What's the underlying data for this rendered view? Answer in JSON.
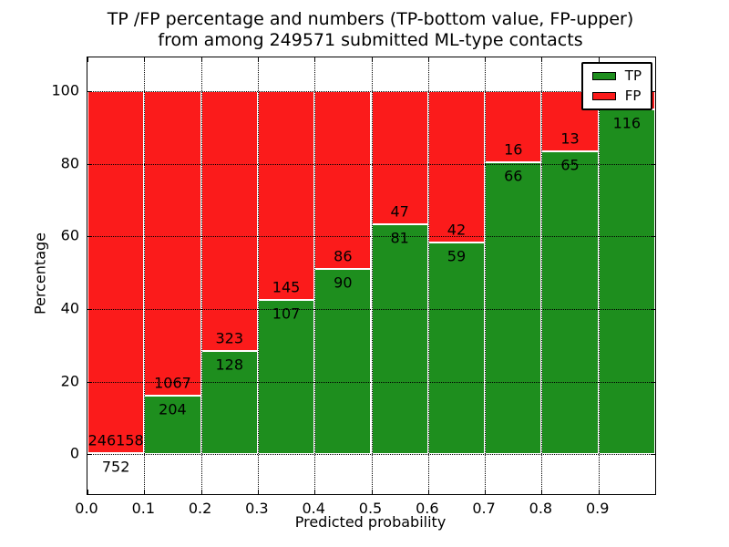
{
  "title": {
    "line1": "TP /FP percentage and numbers (TP-bottom value, FP-upper)",
    "line2": "from among 249571 submitted ML-type contacts"
  },
  "chart_data": {
    "type": "bar",
    "subtype": "stacked-percentage-histogram",
    "title": "TP /FP percentage and numbers (TP-bottom value, FP-upper) from among 249571 submitted ML-type contacts",
    "total_submitted": 249571,
    "xlabel": "Predicted probability",
    "ylabel": "Percentage",
    "xlim": [
      0.0,
      1.0
    ],
    "ylim": [
      -11,
      109.3
    ],
    "x_tick_values": [
      0.0,
      0.1,
      0.2,
      0.3,
      0.4,
      0.5,
      0.6,
      0.7,
      0.8,
      0.9
    ],
    "x_tick_labels": [
      "0.0",
      "0.1",
      "0.2",
      "0.3",
      "0.4",
      "0.5",
      "0.6",
      "0.7",
      "0.8",
      "0.9"
    ],
    "y_tick_values": [
      0,
      20,
      40,
      60,
      80,
      100
    ],
    "y_tick_labels": [
      "0",
      "20",
      "40",
      "60",
      "80",
      "100"
    ],
    "grid": "dotted, drawn above bars",
    "colors": {
      "tp": "#1e8e1e",
      "fp": "#fb1b1b",
      "edge": "#ffffff",
      "grid": "#000000"
    },
    "legend": {
      "position": "upper right",
      "entries": [
        {
          "label": "TP",
          "color_key": "tp"
        },
        {
          "label": "FP",
          "color_key": "fp"
        }
      ]
    },
    "bars": [
      {
        "bin": [
          0.0,
          0.1
        ],
        "tp_count": 752,
        "fp_count": 246158,
        "tp_label": "752",
        "fp_label": "246158",
        "tp_percent": 0.3
      },
      {
        "bin": [
          0.1,
          0.2
        ],
        "tp_count": 204,
        "fp_count": 1067,
        "tp_label": "204",
        "fp_label": "1067",
        "tp_percent": 16.05
      },
      {
        "bin": [
          0.2,
          0.3
        ],
        "tp_count": 128,
        "fp_count": 323,
        "tp_label": "128",
        "fp_label": "323",
        "tp_percent": 28.38
      },
      {
        "bin": [
          0.3,
          0.4
        ],
        "tp_count": 107,
        "fp_count": 145,
        "tp_label": "107",
        "fp_label": "145",
        "tp_percent": 42.46
      },
      {
        "bin": [
          0.4,
          0.5
        ],
        "tp_count": 90,
        "fp_count": 86,
        "tp_label": "90",
        "fp_label": "86",
        "tp_percent": 51.14
      },
      {
        "bin": [
          0.5,
          0.6
        ],
        "tp_count": 81,
        "fp_count": 47,
        "tp_label": "81",
        "fp_label": "47",
        "tp_percent": 63.28
      },
      {
        "bin": [
          0.6,
          0.7
        ],
        "tp_count": 59,
        "fp_count": 42,
        "tp_label": "59",
        "fp_label": "42",
        "tp_percent": 58.42
      },
      {
        "bin": [
          0.7,
          0.8
        ],
        "tp_count": 66,
        "fp_count": 16,
        "tp_label": "66",
        "fp_label": "16",
        "tp_percent": 80.49
      },
      {
        "bin": [
          0.8,
          0.9
        ],
        "tp_count": 65,
        "fp_count": 13,
        "tp_label": "65",
        "fp_label": "13",
        "tp_percent": 83.33
      },
      {
        "bin": [
          0.9,
          1.0
        ],
        "tp_count": 116,
        "fp_count": null,
        "tp_label": "116",
        "fp_label": "",
        "tp_percent": 95.1
      }
    ]
  }
}
